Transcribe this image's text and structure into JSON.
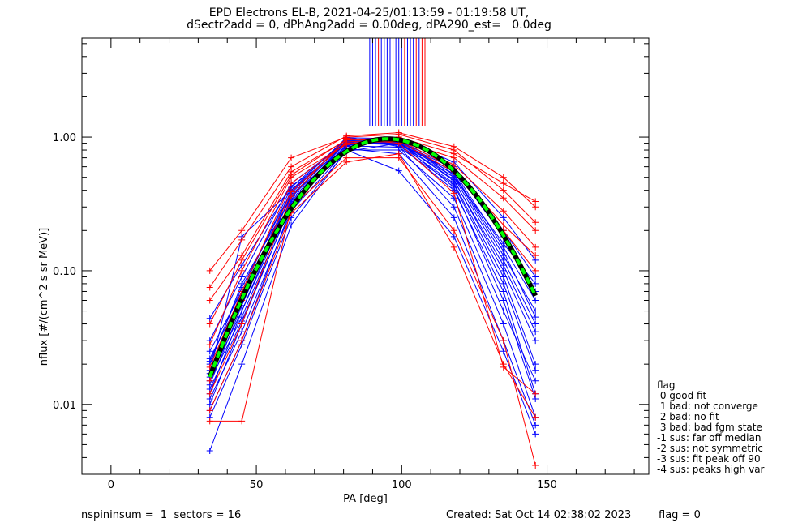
{
  "title_line1": "EPD Electrons EL-B, 2021-04-25/01:13:59 - 01:19:58 UT,",
  "title_line2": "dSectr2add = 0, dPhAng2add = 0.00deg, dPA290_est=   0.0deg",
  "footer": {
    "left": "nspininsum =  1  sectors = 16",
    "created": "Created: Sat Oct 14 02:38:02 2023",
    "flag": "flag = 0"
  },
  "legend": {
    "title": "flag",
    "items": [
      " 0 good fit",
      " 1 bad: not converge",
      " 2 bad: no fit",
      " 3 bad: bad fgm state",
      "-1 sus: far off median",
      "-2 sus: not symmetric",
      "-3 sus: fit peak off 90",
      "-4 sus: peaks high var"
    ]
  },
  "colors": {
    "blue": "#0000ff",
    "red": "#ff0000",
    "fit_green": "#00ff00",
    "fit_black": "#000000"
  },
  "chart_data": {
    "type": "line",
    "xlabel": "PA [deg]",
    "ylabel": "nflux [#/(cm^2 s sr MeV)]",
    "xlim": [
      -10,
      185
    ],
    "ylim": [
      0.003,
      5.5
    ],
    "yscale": "log",
    "x_ticks": [
      0,
      50,
      100,
      150
    ],
    "x_tick_labels": [
      "0",
      "50",
      "100",
      "150"
    ],
    "y_ticks": [
      0.01,
      0.1,
      1.0
    ],
    "y_tick_labels": [
      "0.01",
      "0.10",
      "1.00"
    ],
    "pa_sectors": [
      34,
      45,
      62,
      81,
      99,
      118,
      135,
      146
    ],
    "series": [
      {
        "color": "blue",
        "values": [
          0.012,
          0.05,
          0.38,
          0.95,
          0.92,
          0.42,
          0.06,
          0.011
        ]
      },
      {
        "color": "blue",
        "values": [
          0.018,
          0.06,
          0.4,
          0.9,
          0.88,
          0.45,
          0.09,
          0.02
        ]
      },
      {
        "color": "blue",
        "values": [
          0.009,
          0.03,
          0.3,
          0.85,
          0.95,
          0.5,
          0.12,
          0.04
        ]
      },
      {
        "color": "blue",
        "values": [
          0.02,
          0.08,
          0.35,
          1.0,
          0.85,
          0.3,
          0.04,
          0.008
        ]
      },
      {
        "color": "blue",
        "values": [
          0.015,
          0.045,
          0.33,
          0.88,
          0.9,
          0.55,
          0.15,
          0.06
        ]
      },
      {
        "color": "blue",
        "values": [
          0.025,
          0.07,
          0.42,
          0.97,
          0.93,
          0.6,
          0.2,
          0.09
        ]
      },
      {
        "color": "blue",
        "values": [
          0.011,
          0.035,
          0.28,
          0.8,
          0.8,
          0.35,
          0.05,
          0.015
        ]
      },
      {
        "color": "blue",
        "values": [
          0.008,
          0.028,
          0.25,
          0.78,
          0.9,
          0.48,
          0.1,
          0.03
        ]
      },
      {
        "color": "blue",
        "values": [
          0.03,
          0.09,
          0.45,
          0.92,
          0.87,
          0.4,
          0.07,
          0.012
        ]
      },
      {
        "color": "blue",
        "values": [
          0.014,
          0.055,
          0.37,
          0.9,
          0.96,
          0.52,
          0.13,
          0.05
        ]
      },
      {
        "color": "blue",
        "values": [
          0.022,
          0.065,
          0.36,
          0.86,
          0.84,
          0.44,
          0.08,
          0.018
        ]
      },
      {
        "color": "blue",
        "values": [
          0.01,
          0.04,
          0.32,
          0.93,
          0.91,
          0.58,
          0.18,
          0.07
        ]
      },
      {
        "color": "blue",
        "values": [
          0.044,
          0.11,
          0.43,
          0.82,
          0.75,
          0.25,
          0.03,
          0.007
        ]
      },
      {
        "color": "blue",
        "values": [
          0.017,
          0.18,
          0.4,
          0.99,
          0.97,
          0.65,
          0.25,
          0.12
        ]
      },
      {
        "color": "blue",
        "values": [
          0.0045,
          0.02,
          0.22,
          0.8,
          0.56,
          0.18,
          0.025,
          0.006
        ]
      },
      {
        "color": "blue",
        "values": [
          0.016,
          0.05,
          0.34,
          0.91,
          0.89,
          0.5,
          0.16,
          0.08
        ]
      },
      {
        "color": "blue",
        "values": [
          0.013,
          0.042,
          0.31,
          0.87,
          0.92,
          0.47,
          0.11,
          0.035
        ]
      },
      {
        "color": "blue",
        "values": [
          0.021,
          0.075,
          0.39,
          0.94,
          0.9,
          0.53,
          0.14,
          0.045
        ]
      },
      {
        "color": "red",
        "values": [
          0.1,
          0.2,
          0.7,
          1.0,
          1.05,
          0.8,
          0.4,
          0.23
        ]
      },
      {
        "color": "red",
        "values": [
          0.06,
          0.13,
          0.55,
          0.95,
          1.0,
          0.75,
          0.45,
          0.33
        ]
      },
      {
        "color": "red",
        "values": [
          0.0075,
          0.0075,
          0.3,
          0.7,
          0.7,
          0.2,
          0.03,
          0.0035
        ]
      },
      {
        "color": "red",
        "values": [
          0.019,
          0.07,
          0.45,
          0.9,
          0.93,
          0.55,
          0.2,
          0.1
        ]
      },
      {
        "color": "red",
        "values": [
          0.028,
          0.1,
          0.5,
          0.88,
          0.98,
          0.62,
          0.28,
          0.15
        ]
      },
      {
        "color": "red",
        "values": [
          0.012,
          0.04,
          0.36,
          0.98,
          0.9,
          0.38,
          0.019,
          0.012
        ]
      },
      {
        "color": "red",
        "values": [
          0.04,
          0.12,
          0.52,
          0.96,
          0.94,
          0.7,
          0.35,
          0.2
        ]
      },
      {
        "color": "red",
        "values": [
          0.009,
          0.03,
          0.27,
          0.65,
          0.75,
          0.15,
          0.02,
          0.008
        ]
      },
      {
        "color": "red",
        "values": [
          0.015,
          0.06,
          0.39,
          0.92,
          0.96,
          0.58,
          0.22,
          0.13
        ]
      },
      {
        "color": "red",
        "values": [
          0.075,
          0.17,
          0.6,
          1.02,
          1.08,
          0.85,
          0.5,
          0.3
        ]
      }
    ],
    "fit": {
      "color": "fit_green",
      "peak_pa": 95,
      "peak_value": 0.97,
      "start_value": 0.016,
      "end_value": 0.065
    },
    "peak_markers": {
      "pa": [
        89,
        90,
        91,
        92,
        93,
        94,
        95,
        96,
        97,
        98,
        99,
        100,
        101,
        102,
        103,
        104,
        105,
        106,
        107,
        108
      ],
      "colors": [
        "blue",
        "blue",
        "blue",
        "red",
        "blue",
        "blue",
        "blue",
        "blue",
        "red",
        "blue",
        "blue",
        "blue",
        "red",
        "blue",
        "blue",
        "blue",
        "red",
        "blue",
        "red",
        "red"
      ],
      "top_value": 5.5,
      "bottom_value": 1.2
    }
  }
}
